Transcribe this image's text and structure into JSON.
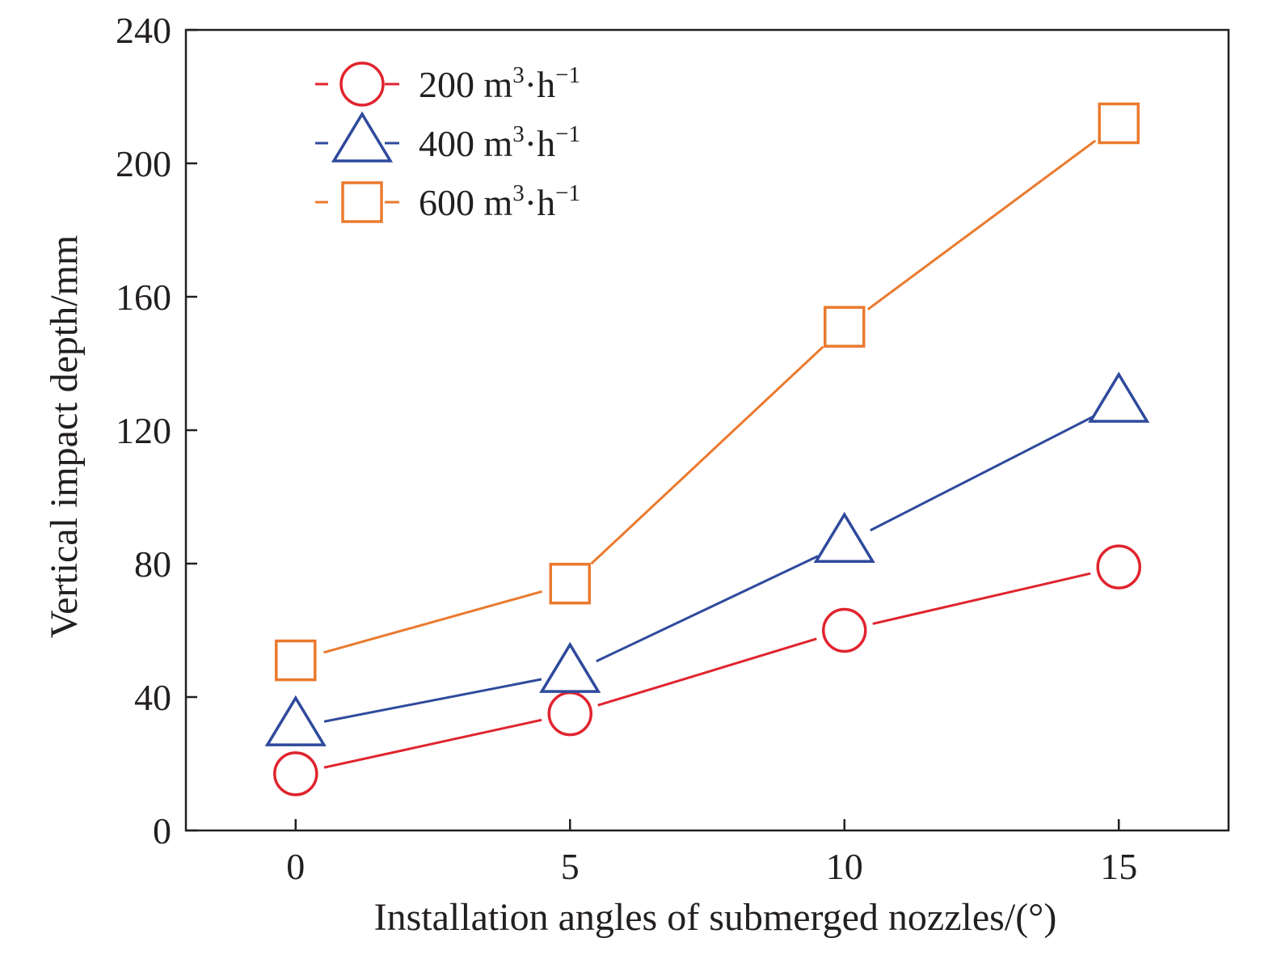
{
  "chart_data": {
    "type": "line",
    "title": "",
    "xlabel": "Installation angles of submerged nozzles/(°)",
    "ylabel": "Vertical impact depth/mm",
    "x": [
      0,
      5,
      10,
      15
    ],
    "xlim": [
      -2,
      17
    ],
    "ylim": [
      0,
      240
    ],
    "xticks": [
      0,
      5,
      10,
      15
    ],
    "yticks": [
      0,
      40,
      80,
      120,
      160,
      200,
      240
    ],
    "grid": false,
    "legend_position": "top-left",
    "series": [
      {
        "name": "200 m³·h⁻¹",
        "label_number": "200",
        "label_unit_base": "m",
        "label_unit_sup": "3",
        "label_unit_mid": "·h",
        "label_unit_sup2": "−1",
        "marker": "circle",
        "color": "#e0242e",
        "values": [
          17,
          35,
          60,
          79
        ]
      },
      {
        "name": "400 m³·h⁻¹",
        "label_number": "400",
        "label_unit_base": "m",
        "label_unit_sup": "3",
        "label_unit_mid": "·h",
        "label_unit_sup2": "−1",
        "marker": "triangle",
        "color": "#2f4a9c",
        "values": [
          31,
          47,
          86,
          128
        ]
      },
      {
        "name": "600 m³·h⁻¹",
        "label_number": "600",
        "label_unit_base": "m",
        "label_unit_sup": "3",
        "label_unit_mid": "·h",
        "label_unit_sup2": "−1",
        "marker": "square",
        "color": "#ea7a2e",
        "values": [
          51,
          74,
          151,
          212
        ]
      }
    ]
  }
}
